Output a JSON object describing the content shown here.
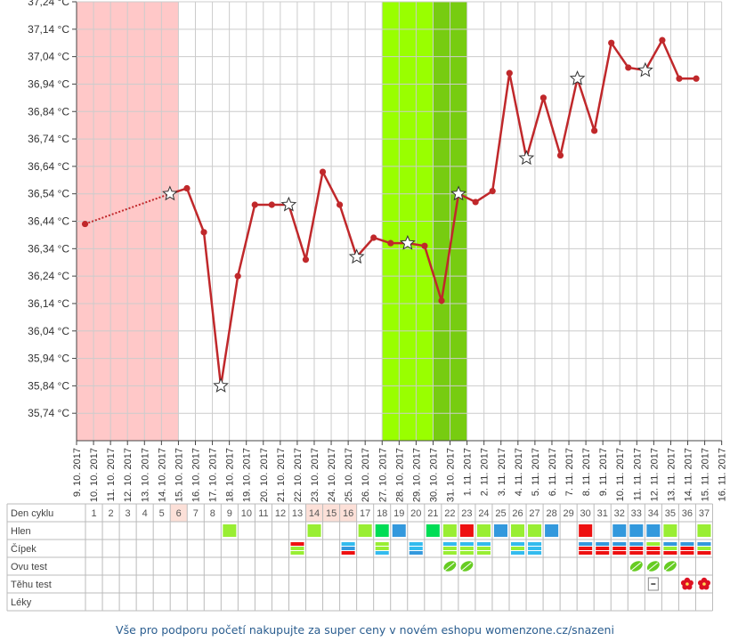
{
  "chart_data": {
    "type": "line",
    "y_unit": "°C",
    "ylim": [
      35.64,
      37.24
    ],
    "y_ticks": [
      "37,24 °C",
      "37,14 °C",
      "37,04 °C",
      "36,94 °C",
      "36,84 °C",
      "36,74 °C",
      "36,64 °C",
      "36,54 °C",
      "36,44 °C",
      "36,34 °C",
      "36,24 °C",
      "36,14 °C",
      "36,04 °C",
      "35,94 °C",
      "35,84 °C",
      "35,74 °C"
    ],
    "dates": [
      "9. 10. 2017",
      "10. 10. 2017",
      "11. 10. 2017",
      "12. 10. 2017",
      "13. 10. 2017",
      "14. 10. 2017",
      "15. 10. 2017",
      "16. 10. 2017",
      "17. 10. 2017",
      "18. 10. 2017",
      "19. 10. 2017",
      "20. 10. 2017",
      "21. 10. 2017",
      "22. 10. 2017",
      "23. 10. 2017",
      "24. 10. 2017",
      "25. 10. 2017",
      "26. 10. 2017",
      "27. 10. 2017",
      "28. 10. 2017",
      "29. 10. 2017",
      "30. 10. 2017",
      "31. 10. 2017",
      "1. 11. 2017",
      "2. 11. 2017",
      "3. 11. 2017",
      "4. 11. 2017",
      "5. 11. 2017",
      "6. 11. 2017",
      "7. 11. 2017",
      "8. 11. 2017",
      "9. 11. 2017",
      "10. 11. 2017",
      "11. 11. 2017",
      "12. 11. 2017",
      "13. 11. 2017",
      "14. 11. 2017",
      "15. 11. 2017",
      "16. 11. 2017"
    ],
    "temps": [
      36.43,
      null,
      null,
      null,
      null,
      36.54,
      36.56,
      36.4,
      35.84,
      36.24,
      36.5,
      36.5,
      36.5,
      36.3,
      36.62,
      36.5,
      36.31,
      36.38,
      36.36,
      36.36,
      36.35,
      36.15,
      36.54,
      36.51,
      36.55,
      36.98,
      36.67,
      36.89,
      36.68,
      36.96,
      36.77,
      37.09,
      37.0,
      36.99,
      37.1,
      36.96,
      36.96
    ],
    "star_days": [
      6,
      9,
      13,
      17,
      20,
      23,
      27,
      30,
      34
    ],
    "dotted_segment": [
      1,
      6
    ],
    "menstruation_days": [
      1,
      6
    ],
    "fertile_days": [
      19,
      21
    ],
    "ovulation_days": [
      22,
      23
    ],
    "colors": {
      "line": "#c0282b",
      "menstruation": "#ffc8c8",
      "fertile": "#99ff00",
      "ovulation": "#77cc11",
      "grid": "#cccccc"
    }
  },
  "table": {
    "row_labels": [
      "Den cyklu",
      "Hlen",
      "Čípek",
      "Ovu test",
      "Těhu test",
      "Léky"
    ],
    "cycle_days": [
      "1",
      "2",
      "3",
      "4",
      "5",
      "6",
      "7",
      "8",
      "9",
      "10",
      "11",
      "12",
      "13",
      "14",
      "15",
      "16",
      "17",
      "18",
      "19",
      "20",
      "21",
      "22",
      "23",
      "24",
      "25",
      "26",
      "27",
      "28",
      "29",
      "30",
      "31",
      "32",
      "33",
      "34",
      "35",
      "36",
      "37"
    ],
    "highlighted_days": [
      6,
      14,
      15,
      16
    ],
    "hlen": [
      [
        9,
        "#99ee33"
      ],
      [
        14,
        "#99ee33"
      ],
      [
        17,
        "#99ee33"
      ],
      [
        18,
        "#00dd55"
      ],
      [
        19,
        "#3399dd"
      ],
      [
        21,
        "#00dd55"
      ],
      [
        22,
        "#99ee33"
      ],
      [
        23,
        "#ee1111"
      ],
      [
        24,
        "#99ee33"
      ],
      [
        25,
        "#3399dd"
      ],
      [
        26,
        "#99ee33"
      ],
      [
        27,
        "#99ee33"
      ],
      [
        28,
        "#3399dd"
      ],
      [
        30,
        "#ee1111"
      ],
      [
        32,
        "#3399dd"
      ],
      [
        33,
        "#3399dd"
      ],
      [
        34,
        "#3399dd"
      ],
      [
        35,
        "#99ee33"
      ],
      [
        37,
        "#99ee33"
      ]
    ],
    "cipek": [
      [
        13,
        [
          "#ee1111",
          "#99ee33",
          "#99ee33"
        ]
      ],
      [
        16,
        [
          "#33bbee",
          "#3399dd",
          "#ee1111"
        ]
      ],
      [
        18,
        [
          "#99ee33",
          "#99ee33",
          "#33bbee"
        ]
      ],
      [
        20,
        [
          "#33bbee",
          "#33bbee",
          "#3399dd"
        ]
      ],
      [
        22,
        [
          "#33bbee",
          "#99ee33",
          "#99ee33"
        ]
      ],
      [
        23,
        [
          "#33bbee",
          "#99ee33",
          "#99ee33"
        ]
      ],
      [
        24,
        [
          "#33bbee",
          "#99ee33",
          "#99ee33"
        ]
      ],
      [
        26,
        [
          "#33bbee",
          "#99ee33",
          "#33bbee"
        ]
      ],
      [
        27,
        [
          "#33bbee",
          "#33bbee",
          "#33bbee"
        ]
      ],
      [
        30,
        [
          "#3399dd",
          "#ee1111",
          "#ee1111"
        ]
      ],
      [
        31,
        [
          "#3399dd",
          "#ee1111",
          "#ee1111"
        ]
      ],
      [
        32,
        [
          "#3399dd",
          "#ee1111",
          "#ee1111"
        ]
      ],
      [
        33,
        [
          "#3399dd",
          "#ee1111",
          "#ee1111"
        ]
      ],
      [
        34,
        [
          "#99ee33",
          "#ee1111",
          "#ee1111"
        ]
      ],
      [
        35,
        [
          "#3399dd",
          "#99ee33",
          "#ee1111"
        ]
      ],
      [
        36,
        [
          "#3399dd",
          "#ee1111",
          "#ee1111"
        ]
      ],
      [
        37,
        [
          "#3399dd",
          "#99ee33",
          "#ee1111"
        ]
      ]
    ],
    "ovu_test_days": [
      22,
      23,
      33,
      34,
      35
    ],
    "tehu_test_negative_days": [
      34
    ],
    "tehu_test_positive_days": [
      36,
      37
    ],
    "icons": {
      "ovu_test": "leaf-icon",
      "tehu_negative": "pregnancy-test-icon",
      "tehu_positive": "flower-icon"
    }
  },
  "footer": {
    "text": "Vše pro podporu početí nakupujte za super ceny v novém eshopu womenzone.cz/snazeni"
  }
}
